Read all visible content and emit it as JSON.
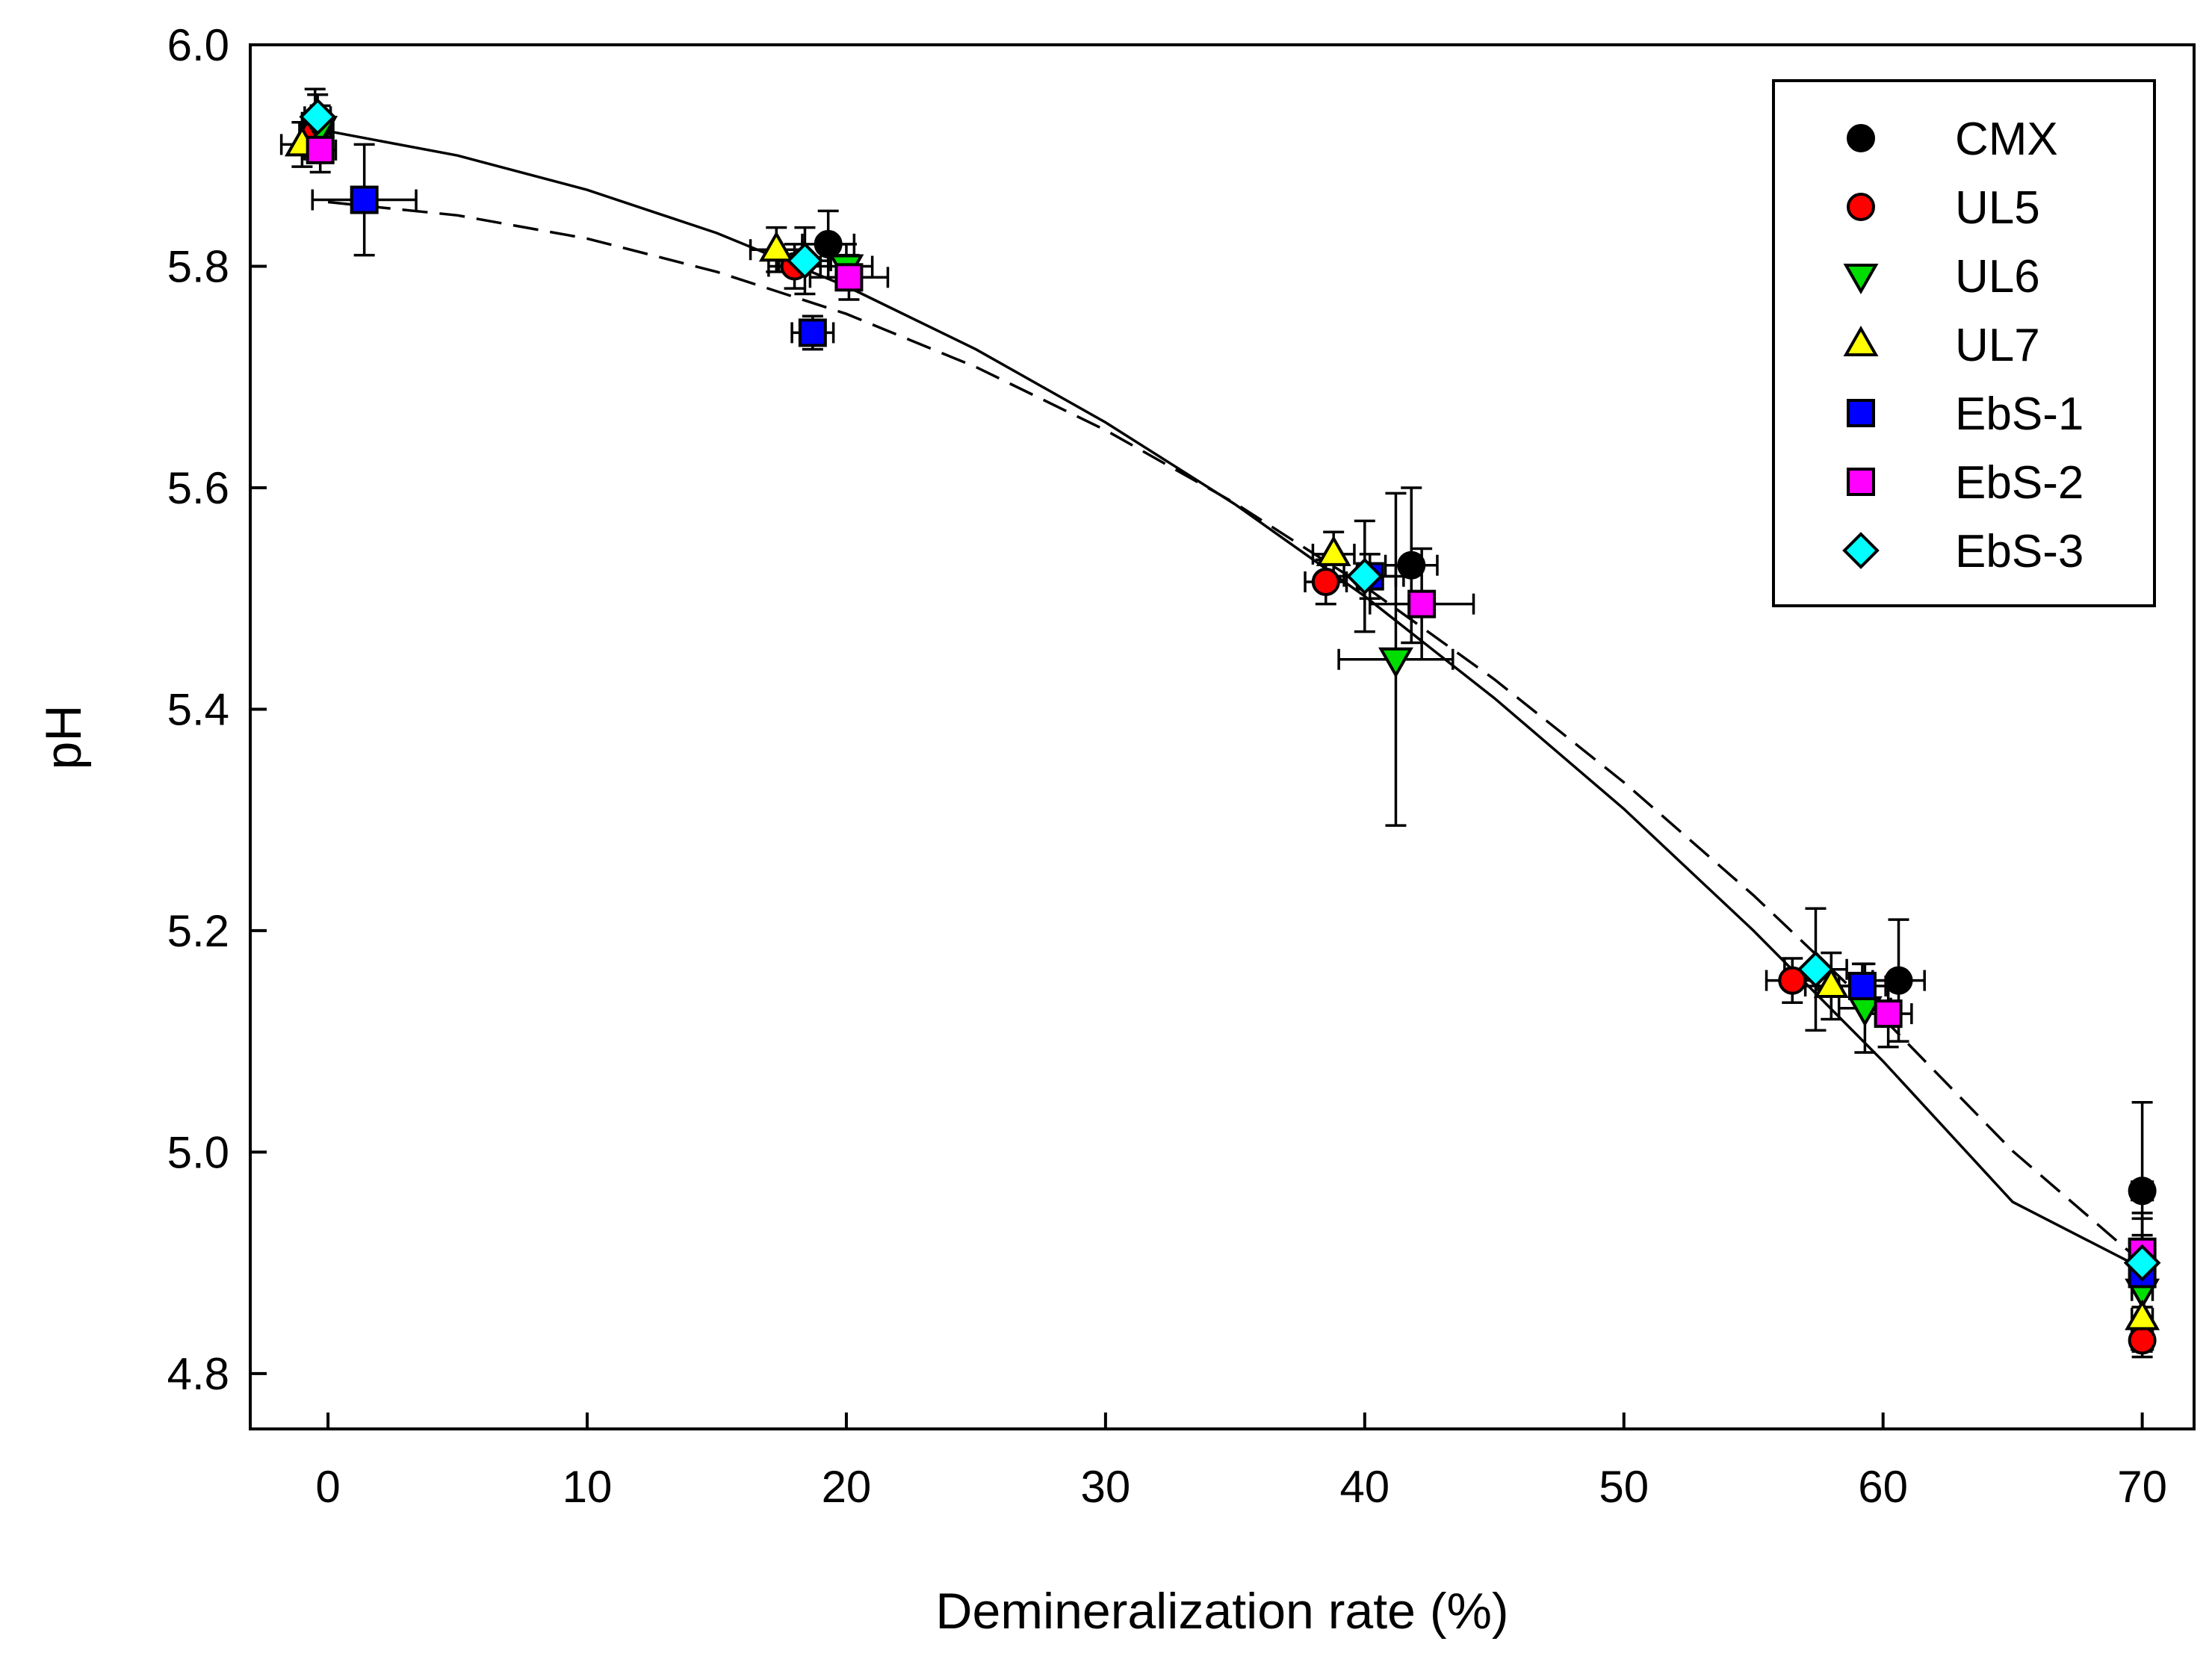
{
  "chart_data": {
    "type": "scatter",
    "title": "",
    "xlabel": "Demineralization rate (%)",
    "ylabel": "pH",
    "xlim": [
      -3,
      72
    ],
    "ylim": [
      4.75,
      6.0
    ],
    "x_ticks": [
      0,
      10,
      20,
      30,
      40,
      50,
      60,
      70
    ],
    "y_ticks": [
      4.8,
      5.0,
      5.2,
      5.4,
      5.6,
      5.8,
      6.0
    ],
    "x_tick_labels": [
      "0",
      "10",
      "20",
      "30",
      "40",
      "50",
      "60",
      "70"
    ],
    "y_tick_labels": [
      "4.8",
      "5.0",
      "5.2",
      "5.4",
      "5.6",
      "5.8",
      "6.0"
    ],
    "grid": false,
    "legend_position": "top-right",
    "series": [
      {
        "name": "CMX",
        "marker": "circle",
        "color": "#000000",
        "points": [
          {
            "x": -0.5,
            "y": 5.93,
            "xerr": 0.5,
            "yerr": 0.03
          },
          {
            "x": 19.3,
            "y": 5.82,
            "xerr": 1.0,
            "yerr": 0.03
          },
          {
            "x": 41.8,
            "y": 5.53,
            "xerr": 1.0,
            "yerr": 0.07
          },
          {
            "x": 60.6,
            "y": 5.155,
            "xerr": 1.0,
            "yerr": 0.055
          },
          {
            "x": 70.0,
            "y": 4.965,
            "xerr": 0.4,
            "yerr": 0.08
          }
        ]
      },
      {
        "name": "UL5",
        "marker": "circle",
        "color": "#ff0000",
        "points": [
          {
            "x": -0.5,
            "y": 5.92,
            "xerr": 0.6,
            "yerr": 0.02
          },
          {
            "x": 18.0,
            "y": 5.8,
            "xerr": 1.0,
            "yerr": 0.02
          },
          {
            "x": 38.5,
            "y": 5.515,
            "xerr": 0.8,
            "yerr": 0.02
          },
          {
            "x": 56.5,
            "y": 5.155,
            "xerr": 1.0,
            "yerr": 0.02
          },
          {
            "x": 70.0,
            "y": 4.83,
            "xerr": 0.4,
            "yerr": 0.015
          }
        ]
      },
      {
        "name": "UL6",
        "marker": "triangle-down",
        "color": "#00dd00",
        "points": [
          {
            "x": -0.3,
            "y": 5.925,
            "xerr": 0.5,
            "yerr": 0.02
          },
          {
            "x": 20.0,
            "y": 5.8,
            "xerr": 1.0,
            "yerr": 0.02
          },
          {
            "x": 41.2,
            "y": 5.445,
            "xerr": 2.2,
            "yerr": 0.15
          },
          {
            "x": 59.3,
            "y": 5.13,
            "xerr": 1.0,
            "yerr": 0.04
          },
          {
            "x": 70.0,
            "y": 4.875,
            "xerr": 0.4,
            "yerr": 0.05
          }
        ]
      },
      {
        "name": "UL7",
        "marker": "triangle-up",
        "color": "#ffff00",
        "points": [
          {
            "x": -1.0,
            "y": 5.91,
            "xerr": 0.8,
            "yerr": 0.02
          },
          {
            "x": 17.3,
            "y": 5.815,
            "xerr": 1.0,
            "yerr": 0.02
          },
          {
            "x": 38.8,
            "y": 5.54,
            "xerr": 0.8,
            "yerr": 0.02
          },
          {
            "x": 58.0,
            "y": 5.15,
            "xerr": 1.0,
            "yerr": 0.03
          },
          {
            "x": 70.0,
            "y": 4.85,
            "xerr": 0.4,
            "yerr": 0.03
          }
        ]
      },
      {
        "name": "EbS-1",
        "marker": "square",
        "color": "#0000ff",
        "points": [
          {
            "x": 1.4,
            "y": 5.86,
            "xerr": 2.0,
            "yerr": 0.05
          },
          {
            "x": 18.7,
            "y": 5.74,
            "xerr": 0.8,
            "yerr": 0.015
          },
          {
            "x": 40.2,
            "y": 5.52,
            "xerr": 1.0,
            "yerr": 0.02
          },
          {
            "x": 59.2,
            "y": 5.15,
            "xerr": 0.9,
            "yerr": 0.02
          },
          {
            "x": 70.0,
            "y": 4.89,
            "xerr": 0.4,
            "yerr": 0.03
          }
        ]
      },
      {
        "name": "EbS-2",
        "marker": "square",
        "color": "#ff00ff",
        "points": [
          {
            "x": -0.3,
            "y": 5.905,
            "xerr": 0.6,
            "yerr": 0.02
          },
          {
            "x": 20.1,
            "y": 5.79,
            "xerr": 1.5,
            "yerr": 0.02
          },
          {
            "x": 42.2,
            "y": 5.495,
            "xerr": 2.0,
            "yerr": 0.05
          },
          {
            "x": 60.2,
            "y": 5.125,
            "xerr": 0.9,
            "yerr": 0.03
          },
          {
            "x": 70.0,
            "y": 4.91,
            "xerr": 0.4,
            "yerr": 0.035
          }
        ]
      },
      {
        "name": "EbS-3",
        "marker": "diamond",
        "color": "#00ffff",
        "points": [
          {
            "x": -0.4,
            "y": 5.935,
            "xerr": 0.5,
            "yerr": 0.02
          },
          {
            "x": 18.4,
            "y": 5.805,
            "xerr": 1.0,
            "yerr": 0.03
          },
          {
            "x": 40.0,
            "y": 5.52,
            "xerr": 1.5,
            "yerr": 0.05
          },
          {
            "x": 57.4,
            "y": 5.165,
            "xerr": 1.2,
            "yerr": 0.055
          },
          {
            "x": 70.0,
            "y": 4.9,
            "xerr": 0.4,
            "yerr": 0.04
          }
        ]
      }
    ],
    "fit_lines": [
      {
        "name": "fit-solid",
        "style": "solid",
        "x": [
          -0.5,
          0,
          5,
          10,
          15,
          20,
          25,
          30,
          35,
          40,
          45,
          50,
          55,
          60,
          65,
          70
        ],
        "y": [
          5.925,
          5.922,
          5.9,
          5.869,
          5.83,
          5.782,
          5.725,
          5.659,
          5.585,
          5.502,
          5.41,
          5.31,
          5.2,
          5.082,
          4.955,
          4.895
        ]
      },
      {
        "name": "fit-dashed",
        "style": "dashed",
        "x": [
          0,
          5,
          10,
          15,
          20,
          25,
          30,
          35,
          40,
          45,
          50,
          55,
          60,
          65,
          70
        ],
        "y": [
          5.858,
          5.846,
          5.825,
          5.795,
          5.757,
          5.709,
          5.652,
          5.586,
          5.511,
          5.427,
          5.334,
          5.232,
          5.121,
          5.001,
          4.9
        ]
      }
    ]
  }
}
